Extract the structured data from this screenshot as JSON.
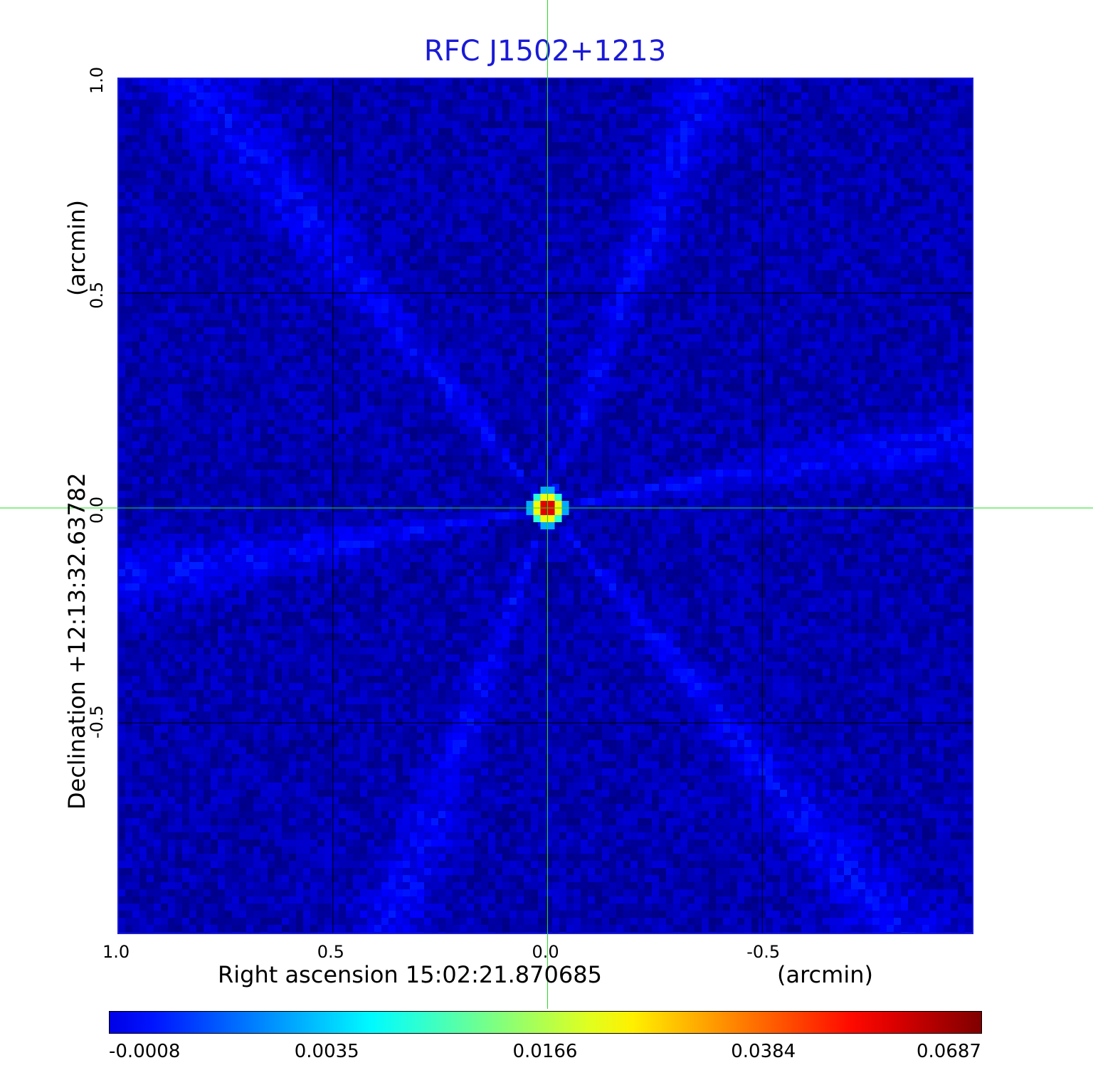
{
  "chart_data": {
    "type": "heatmap",
    "title": "RFC J1502+1213",
    "xlabel": "Right ascension  15:02:21.870685",
    "xunit": "(arcmin)",
    "ylabel": "Declination  +12:13:32.63782",
    "yunit": "(arcmin)",
    "xlim": [
      1.0,
      -0.99
    ],
    "ylim": [
      -0.99,
      1.0
    ],
    "x_ticks": [
      "1.0",
      "0.5",
      "0.0",
      "-0.5"
    ],
    "x_tick_values": [
      1.0,
      0.5,
      0.0,
      -0.5
    ],
    "y_ticks": [
      "1.0",
      "0.5",
      "0.0",
      "-0.5"
    ],
    "y_tick_values": [
      1.0,
      0.5,
      0.0,
      -0.5
    ],
    "grid": true,
    "crosshair": {
      "x": 0.0,
      "y": 0.0,
      "color": "#22dd22"
    },
    "colormap": "jet",
    "colorbar": {
      "tick_labels": [
        "-0.0008",
        "0.0035",
        "0.0166",
        "0.0384",
        "0.0687"
      ],
      "tick_values": [
        -0.0008,
        0.0035,
        0.0166,
        0.0384,
        0.0687
      ],
      "min": -0.0008,
      "max": 0.0687
    },
    "background_level": 0.0,
    "source": {
      "ra_offset": 0.0,
      "dec_offset": 0.0,
      "peak": 0.0687
    },
    "colors": {
      "title": "#1a1ad6",
      "grid": "#000000",
      "crosshair": "#22dd22"
    }
  }
}
